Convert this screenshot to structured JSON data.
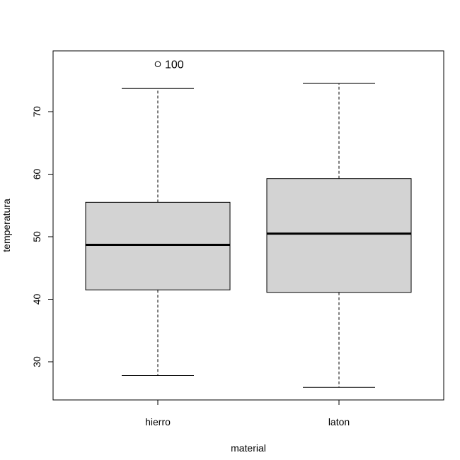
{
  "chart_data": {
    "type": "boxplot",
    "title": "",
    "xlabel": "material",
    "ylabel": "temperatura",
    "ylim": [
      24,
      80
    ],
    "yticks": [
      30,
      40,
      50,
      60,
      70
    ],
    "categories": [
      "hierro",
      "laton"
    ],
    "boxes": [
      {
        "category": "hierro",
        "whisker_low": 27.8,
        "q1": 41.5,
        "median": 48.7,
        "q3": 55.5,
        "whisker_high": 73.7,
        "outliers": [
          {
            "value": 77.6,
            "label": "100"
          }
        ]
      },
      {
        "category": "laton",
        "whisker_low": 25.9,
        "q1": 41.1,
        "median": 50.5,
        "q3": 59.3,
        "whisker_high": 74.5,
        "outliers": []
      }
    ],
    "box_fill": "#d3d3d3",
    "line_color": "#000000",
    "grid": false,
    "legend": "none"
  }
}
